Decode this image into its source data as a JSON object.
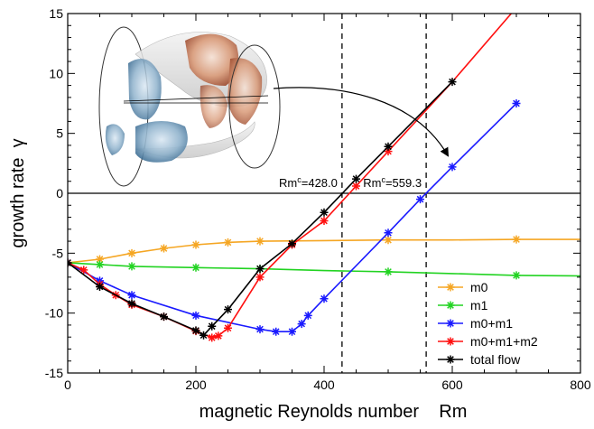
{
  "chart_data": {
    "type": "line",
    "xlabel": "magnetic Reynolds number    Rm",
    "ylabel": "growth rate  γ",
    "xlim": [
      0,
      800
    ],
    "ylim": [
      -15,
      15
    ],
    "xticks": [
      0,
      200,
      400,
      600,
      800
    ],
    "yticks": [
      -15,
      -10,
      -5,
      0,
      5,
      10,
      15
    ],
    "legend_position": "bottom-right",
    "series": [
      {
        "name": "m0",
        "color": "#f5a623",
        "x": [
          0,
          50,
          100,
          150,
          200,
          250,
          300,
          400,
          500,
          600,
          700,
          800
        ],
        "y": [
          -5.8,
          -5.5,
          -5.0,
          -4.6,
          -4.3,
          -4.1,
          -4.0,
          -3.95,
          -3.9,
          -3.9,
          -3.85,
          -3.85
        ],
        "markers": [
          50,
          100,
          150,
          200,
          250,
          300,
          500,
          700
        ]
      },
      {
        "name": "m1",
        "color": "#22d322",
        "x": [
          0,
          50,
          100,
          200,
          300,
          400,
          500,
          600,
          700,
          800
        ],
        "y": [
          -5.8,
          -5.95,
          -6.1,
          -6.2,
          -6.3,
          -6.45,
          -6.55,
          -6.7,
          -6.85,
          -6.9
        ],
        "markers": [
          50,
          100,
          200,
          300,
          500,
          700
        ]
      },
      {
        "name": "m0+m1",
        "color": "#1a1aff",
        "x": [
          0,
          50,
          100,
          200,
          300,
          325,
          350,
          365,
          375,
          400,
          500,
          550,
          600,
          700
        ],
        "y": [
          -5.8,
          -7.3,
          -8.5,
          -10.2,
          -11.35,
          -11.55,
          -11.55,
          -10.9,
          -10.2,
          -8.8,
          -3.3,
          -0.5,
          2.2,
          7.5
        ],
        "markers": [
          0,
          50,
          100,
          200,
          300,
          325,
          350,
          365,
          375,
          400,
          500,
          550,
          600,
          700
        ]
      },
      {
        "name": "m0+m1+m2",
        "color": "#ff1010",
        "x": [
          0,
          25,
          50,
          75,
          100,
          150,
          200,
          225,
          235,
          250,
          300,
          350,
          400,
          450,
          500,
          600,
          700
        ],
        "y": [
          -5.8,
          -6.4,
          -7.6,
          -8.5,
          -9.3,
          -10.3,
          -11.5,
          -12.05,
          -11.9,
          -11.25,
          -7.0,
          -4.3,
          -2.3,
          0.6,
          3.5,
          9.3,
          15.5
        ],
        "markers": [
          0,
          25,
          50,
          75,
          100,
          150,
          200,
          225,
          235,
          250,
          300,
          350,
          400,
          450,
          500
        ]
      },
      {
        "name": "total flow",
        "color": "#000000",
        "x": [
          0,
          50,
          100,
          150,
          200,
          212,
          225,
          250,
          300,
          350,
          400,
          450,
          500,
          600
        ],
        "y": [
          -5.8,
          -7.8,
          -9.2,
          -10.3,
          -11.45,
          -11.85,
          -11.1,
          -9.7,
          -6.3,
          -4.2,
          -1.6,
          1.2,
          3.9,
          9.3
        ],
        "markers": [
          0,
          50,
          100,
          150,
          200,
          212,
          225,
          250,
          300,
          350,
          400,
          450,
          500,
          600
        ]
      }
    ],
    "critical_lines": [
      {
        "x": 428.0,
        "label_main": "Rm",
        "label_sup": "c",
        "label_value": "=428.0"
      },
      {
        "x": 559.3,
        "label_main": "Rm",
        "label_sup": "c",
        "label_value": "=559.3"
      }
    ],
    "zero_line": 0
  }
}
